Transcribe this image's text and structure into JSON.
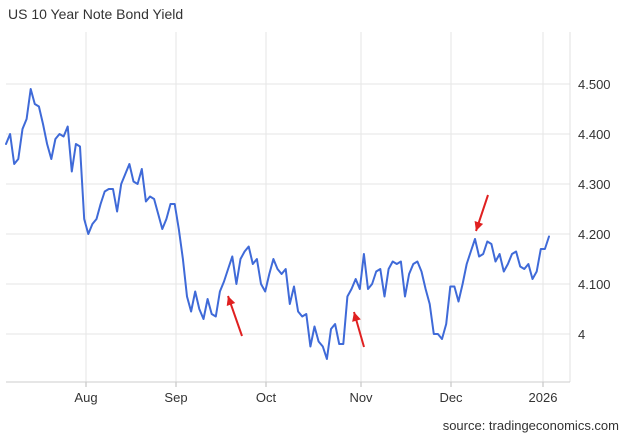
{
  "chart_data": {
    "type": "line",
    "title": "US 10 Year Note Bond Yield",
    "source": "source: tradingeconomics.com",
    "xlabel": "",
    "ylabel": "",
    "x_ticks": [
      "Aug",
      "Sep",
      "Oct",
      "Nov",
      "Dec",
      "2026"
    ],
    "y_ticks": [
      "4.500",
      "4.400",
      "4.300",
      "4.200",
      "4.100",
      "4"
    ],
    "y_tick_values": [
      4.5,
      4.4,
      4.3,
      4.2,
      4.1,
      4.0
    ],
    "ylim": [
      3.9,
      4.6
    ],
    "grid": true,
    "series": [
      {
        "color": "#3f6ad8",
        "values": [
          4.38,
          4.4,
          4.34,
          4.35,
          4.41,
          4.43,
          4.49,
          4.46,
          4.455,
          4.42,
          4.38,
          4.35,
          4.39,
          4.4,
          4.395,
          4.415,
          4.325,
          4.38,
          4.375,
          4.23,
          4.2,
          4.22,
          4.23,
          4.26,
          4.285,
          4.29,
          4.29,
          4.245,
          4.3,
          4.32,
          4.34,
          4.305,
          4.3,
          4.33,
          4.265,
          4.275,
          4.27,
          4.24,
          4.21,
          4.23,
          4.26,
          4.26,
          4.21,
          4.15,
          4.075,
          4.045,
          4.085,
          4.05,
          4.03,
          4.07,
          4.04,
          4.035,
          4.085,
          4.105,
          4.13,
          4.155,
          4.1,
          4.15,
          4.165,
          4.175,
          4.14,
          4.15,
          4.1,
          4.085,
          4.12,
          4.15,
          4.13,
          4.12,
          4.13,
          4.06,
          4.095,
          4.045,
          4.035,
          4.04,
          3.975,
          4.015,
          3.985,
          3.975,
          3.95,
          4.01,
          4.02,
          3.98,
          3.98,
          4.075,
          4.09,
          4.11,
          4.09,
          4.16,
          4.09,
          4.1,
          4.125,
          4.13,
          4.075,
          4.13,
          4.145,
          4.14,
          4.145,
          4.075,
          4.12,
          4.14,
          4.145,
          4.125,
          4.09,
          4.06,
          4.0,
          4.0,
          3.99,
          4.02,
          4.095,
          4.095,
          4.065,
          4.1,
          4.14,
          4.165,
          4.19,
          4.155,
          4.16,
          4.185,
          4.18,
          4.145,
          4.16,
          4.125,
          4.14,
          4.16,
          4.165,
          4.135,
          4.13,
          4.14,
          4.11,
          4.125,
          4.17,
          4.17,
          4.195
        ]
      }
    ],
    "annotations": [
      {
        "type": "arrow",
        "color": "#e02020",
        "points_to": "Sep local low"
      },
      {
        "type": "arrow",
        "color": "#e02020",
        "points_to": "Nov local low"
      },
      {
        "type": "arrow",
        "color": "#e02020",
        "points_to": "Dec local high"
      }
    ]
  }
}
